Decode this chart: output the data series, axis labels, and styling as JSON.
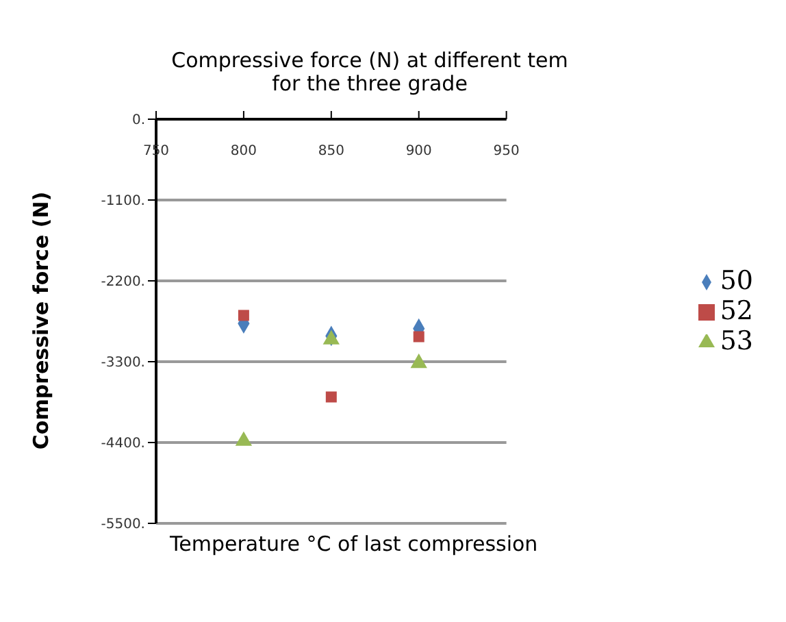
{
  "chart_data": {
    "type": "scatter",
    "title": "Compressive force (N)  at different tem\nfor the three grade",
    "xlabel": "Temperature °C of last compression",
    "ylabel": "Compressive force (N)",
    "x": [
      800,
      850,
      900
    ],
    "series": [
      {
        "name": "50",
        "color": "#4a7ebb",
        "marker": "diamond",
        "values": [
          -2780,
          -2950,
          -2850
        ]
      },
      {
        "name": "52",
        "color": "#be4b48",
        "marker": "square",
        "values": [
          -2670,
          -3780,
          -2960
        ]
      },
      {
        "name": "53",
        "color": "#98b954",
        "marker": "triangle",
        "values": [
          -4380,
          -3000,
          -3320
        ]
      }
    ],
    "xlim": [
      750,
      950
    ],
    "xticks": [
      750,
      800,
      850,
      900,
      950
    ],
    "ylim": [
      -5500,
      0
    ],
    "yticks": [
      {
        "value": 0,
        "label": "0."
      },
      {
        "value": -1100,
        "label": "-1100."
      },
      {
        "value": -2200,
        "label": "-2200."
      },
      {
        "value": -3300,
        "label": "-3300."
      },
      {
        "value": -4400,
        "label": "-4400."
      },
      {
        "value": -5500,
        "label": "-5500."
      }
    ],
    "grid": "y",
    "legend": "right"
  }
}
